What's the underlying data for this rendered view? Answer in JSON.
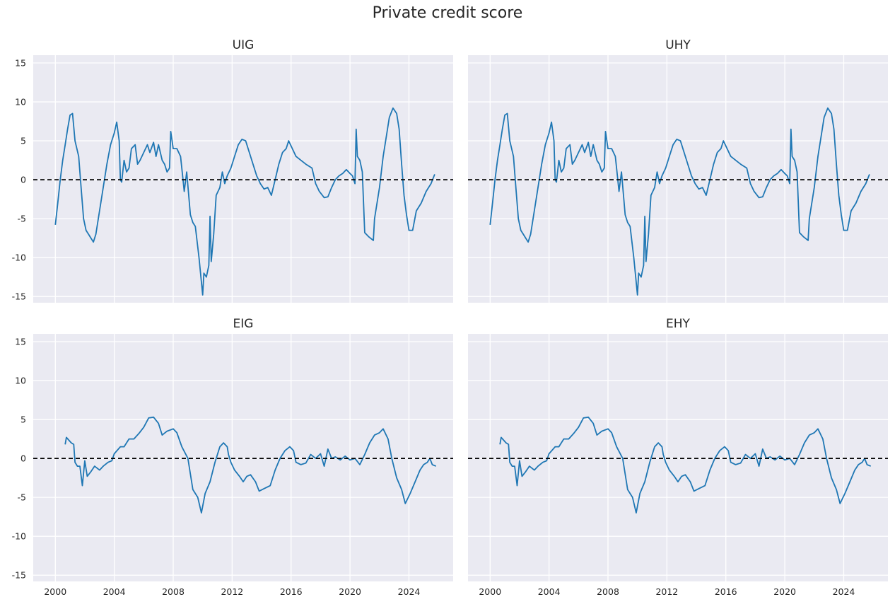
{
  "chart_data": {
    "type": "line",
    "title": "Private credit score",
    "layout": "2x2 grid, shared x and y axes",
    "grid": true,
    "background_color": "#EAEAF2",
    "line_color": "#1F77B4",
    "reference_line": {
      "y": 0,
      "style": "dashed",
      "color": "#000000"
    },
    "ylim": [
      -15.8,
      16
    ],
    "xlim": [
      "1998-07",
      "2027-01"
    ],
    "yticks": [
      -15,
      -10,
      -5,
      0,
      5,
      10,
      15
    ],
    "xticks": [
      "2000",
      "2004",
      "2008",
      "2012",
      "2016",
      "2020",
      "2024"
    ],
    "panels": [
      {
        "title": "UIG",
        "series_ref": "US"
      },
      {
        "title": "UHY",
        "series_ref": "US"
      },
      {
        "title": "EIG",
        "series_ref": "EU"
      },
      {
        "title": "EHY",
        "series_ref": "EU"
      }
    ],
    "series": {
      "US": [
        [
          "2000-01",
          -5.8
        ],
        [
          "2000-03",
          -3
        ],
        [
          "2000-05",
          0
        ],
        [
          "2000-07",
          2.5
        ],
        [
          "2000-09",
          4.5
        ],
        [
          "2000-11",
          6.5
        ],
        [
          "2001-01",
          8.3
        ],
        [
          "2001-03",
          8.5
        ],
        [
          "2001-05",
          5
        ],
        [
          "2001-08",
          3
        ],
        [
          "2001-10",
          -1
        ],
        [
          "2001-12",
          -5
        ],
        [
          "2002-02",
          -6.5
        ],
        [
          "2002-04",
          -7
        ],
        [
          "2002-06",
          -7.5
        ],
        [
          "2002-08",
          -8
        ],
        [
          "2002-10",
          -7
        ],
        [
          "2003-01",
          -4
        ],
        [
          "2003-04",
          -1
        ],
        [
          "2003-07",
          2
        ],
        [
          "2003-10",
          4.5
        ],
        [
          "2004-01",
          6
        ],
        [
          "2004-03",
          7.4
        ],
        [
          "2004-05",
          5
        ],
        [
          "2004-06",
          0
        ],
        [
          "2004-07",
          -0.3
        ],
        [
          "2004-09",
          2.5
        ],
        [
          "2004-11",
          1
        ],
        [
          "2005-01",
          1.5
        ],
        [
          "2005-03",
          4
        ],
        [
          "2005-06",
          4.5
        ],
        [
          "2005-08",
          2
        ],
        [
          "2005-10",
          2.5
        ],
        [
          "2006-01",
          3.5
        ],
        [
          "2006-04",
          4.5
        ],
        [
          "2006-06",
          3.5
        ],
        [
          "2006-09",
          4.8
        ],
        [
          "2006-11",
          3
        ],
        [
          "2007-01",
          4.5
        ],
        [
          "2007-04",
          2.5
        ],
        [
          "2007-06",
          2
        ],
        [
          "2007-08",
          1
        ],
        [
          "2007-10",
          1.5
        ],
        [
          "2007-11",
          6.2
        ],
        [
          "2008-01",
          4
        ],
        [
          "2008-04",
          4
        ],
        [
          "2008-07",
          3
        ],
        [
          "2008-09",
          0
        ],
        [
          "2008-10",
          -1.5
        ],
        [
          "2008-12",
          1
        ],
        [
          "2009-03",
          -4.5
        ],
        [
          "2009-05",
          -5.5
        ],
        [
          "2009-07",
          -6
        ],
        [
          "2009-10",
          -10
        ],
        [
          "2010-01",
          -14.8
        ],
        [
          "2010-02",
          -12
        ],
        [
          "2010-04",
          -12.5
        ],
        [
          "2010-06",
          -11
        ],
        [
          "2010-07",
          -4.7
        ],
        [
          "2010-08",
          -10.5
        ],
        [
          "2010-10",
          -7
        ],
        [
          "2010-12",
          -2
        ],
        [
          "2011-03",
          -1
        ],
        [
          "2011-05",
          1
        ],
        [
          "2011-07",
          -0.5
        ],
        [
          "2011-09",
          0.5
        ],
        [
          "2011-12",
          1.5
        ],
        [
          "2012-03",
          3
        ],
        [
          "2012-06",
          4.5
        ],
        [
          "2012-09",
          5.2
        ],
        [
          "2012-12",
          5
        ],
        [
          "2013-03",
          3.5
        ],
        [
          "2013-06",
          2
        ],
        [
          "2013-09",
          0.5
        ],
        [
          "2013-12",
          -0.5
        ],
        [
          "2014-03",
          -1.2
        ],
        [
          "2014-06",
          -1
        ],
        [
          "2014-09",
          -2
        ],
        [
          "2014-12",
          0
        ],
        [
          "2015-03",
          2
        ],
        [
          "2015-06",
          3.5
        ],
        [
          "2015-09",
          4
        ],
        [
          "2015-11",
          5
        ],
        [
          "2016-02",
          4
        ],
        [
          "2016-05",
          3
        ],
        [
          "2016-09",
          2.5
        ],
        [
          "2017-01",
          2
        ],
        [
          "2017-06",
          1.5
        ],
        [
          "2017-09",
          -0.5
        ],
        [
          "2017-12",
          -1.5
        ],
        [
          "2018-04",
          -2.3
        ],
        [
          "2018-07",
          -2.2
        ],
        [
          "2018-10",
          -1
        ],
        [
          "2019-01",
          0
        ],
        [
          "2019-04",
          0.5
        ],
        [
          "2019-07",
          0.8
        ],
        [
          "2019-10",
          1.3
        ],
        [
          "2020-01",
          0.8
        ],
        [
          "2020-03",
          0.5
        ],
        [
          "2020-05",
          -0.5
        ],
        [
          "2020-06",
          6.5
        ],
        [
          "2020-07",
          3
        ],
        [
          "2020-09",
          2.5
        ],
        [
          "2020-11",
          1
        ],
        [
          "2021-01",
          -6.8
        ],
        [
          "2021-04",
          -7.3
        ],
        [
          "2021-08",
          -7.8
        ],
        [
          "2021-09",
          -5
        ],
        [
          "2022-01",
          -1
        ],
        [
          "2022-04",
          3
        ],
        [
          "2022-06",
          5
        ],
        [
          "2022-09",
          8
        ],
        [
          "2022-12",
          9.2
        ],
        [
          "2023-03",
          8.5
        ],
        [
          "2023-05",
          6.5
        ],
        [
          "2023-07",
          2
        ],
        [
          "2023-09",
          -2
        ],
        [
          "2023-11",
          -4.5
        ],
        [
          "2024-01",
          -6.5
        ],
        [
          "2024-04",
          -6.5
        ],
        [
          "2024-07",
          -4
        ],
        [
          "2024-11",
          -3
        ],
        [
          "2025-03",
          -1.5
        ],
        [
          "2025-07",
          -0.5
        ],
        [
          "2025-10",
          0.7
        ]
      ],
      "EU": [
        [
          "2000-09",
          1.8
        ],
        [
          "2000-10",
          2.7
        ],
        [
          "2001-02",
          2.0
        ],
        [
          "2001-04",
          1.8
        ],
        [
          "2001-05",
          -0.5
        ],
        [
          "2001-07",
          -1
        ],
        [
          "2001-09",
          -1.0
        ],
        [
          "2001-11",
          -3.5
        ],
        [
          "2002-01",
          -0.3
        ],
        [
          "2002-03",
          -2.3
        ],
        [
          "2002-06",
          -1.7
        ],
        [
          "2002-09",
          -1.0
        ],
        [
          "2003-01",
          -1.5
        ],
        [
          "2003-04",
          -1.0
        ],
        [
          "2003-08",
          -0.5
        ],
        [
          "2003-11",
          -0.3
        ],
        [
          "2004-01",
          0.6
        ],
        [
          "2004-06",
          1.5
        ],
        [
          "2004-09",
          1.5
        ],
        [
          "2005-01",
          2.5
        ],
        [
          "2005-05",
          2.5
        ],
        [
          "2005-09",
          3.2
        ],
        [
          "2006-01",
          4.0
        ],
        [
          "2006-05",
          5.2
        ],
        [
          "2006-09",
          5.3
        ],
        [
          "2007-01",
          4.5
        ],
        [
          "2007-04",
          3.0
        ],
        [
          "2007-08",
          3.5
        ],
        [
          "2008-01",
          3.8
        ],
        [
          "2008-04",
          3.3
        ],
        [
          "2008-08",
          1.5
        ],
        [
          "2009-01",
          0
        ],
        [
          "2009-05",
          -4
        ],
        [
          "2009-09",
          -5
        ],
        [
          "2009-12",
          -7
        ],
        [
          "2010-03",
          -4.5
        ],
        [
          "2010-07",
          -3
        ],
        [
          "2010-11",
          -0.5
        ],
        [
          "2011-03",
          1.5
        ],
        [
          "2011-06",
          2.0
        ],
        [
          "2011-09",
          1.5
        ],
        [
          "2011-10",
          0.5
        ],
        [
          "2011-12",
          -0.5
        ],
        [
          "2012-03",
          -1.5
        ],
        [
          "2012-07",
          -2.3
        ],
        [
          "2012-10",
          -3
        ],
        [
          "2013-01",
          -2.3
        ],
        [
          "2013-04",
          -2.1
        ],
        [
          "2013-08",
          -3
        ],
        [
          "2013-11",
          -4.2
        ],
        [
          "2014-04",
          -3.8
        ],
        [
          "2014-08",
          -3.5
        ],
        [
          "2014-12",
          -1.5
        ],
        [
          "2015-04",
          0
        ],
        [
          "2015-08",
          1.0
        ],
        [
          "2015-12",
          1.5
        ],
        [
          "2016-03",
          1.0
        ],
        [
          "2016-05",
          -0.5
        ],
        [
          "2016-09",
          -0.8
        ],
        [
          "2017-01",
          -0.6
        ],
        [
          "2017-05",
          0.5
        ],
        [
          "2017-09",
          0
        ],
        [
          "2018-01",
          0.6
        ],
        [
          "2018-04",
          -1
        ],
        [
          "2018-07",
          1.2
        ],
        [
          "2018-10",
          0
        ],
        [
          "2019-01",
          0.2
        ],
        [
          "2019-05",
          -0.2
        ],
        [
          "2019-09",
          0.3
        ],
        [
          "2020-01",
          -0.2
        ],
        [
          "2020-05",
          0
        ],
        [
          "2020-09",
          -0.8
        ],
        [
          "2021-01",
          0.5
        ],
        [
          "2021-05",
          2.0
        ],
        [
          "2021-09",
          3.0
        ],
        [
          "2022-01",
          3.3
        ],
        [
          "2022-04",
          3.8
        ],
        [
          "2022-08",
          2.5
        ],
        [
          "2022-11",
          0
        ],
        [
          "2023-03",
          -2.5
        ],
        [
          "2023-07",
          -4
        ],
        [
          "2023-10",
          -5.8
        ],
        [
          "2024-02",
          -4.5
        ],
        [
          "2024-06",
          -3.0
        ],
        [
          "2024-10",
          -1.5
        ],
        [
          "2025-01",
          -0.8
        ],
        [
          "2025-04",
          -0.5
        ],
        [
          "2025-06",
          0
        ],
        [
          "2025-08",
          -0.8
        ],
        [
          "2025-11",
          -1.0
        ]
      ]
    }
  }
}
